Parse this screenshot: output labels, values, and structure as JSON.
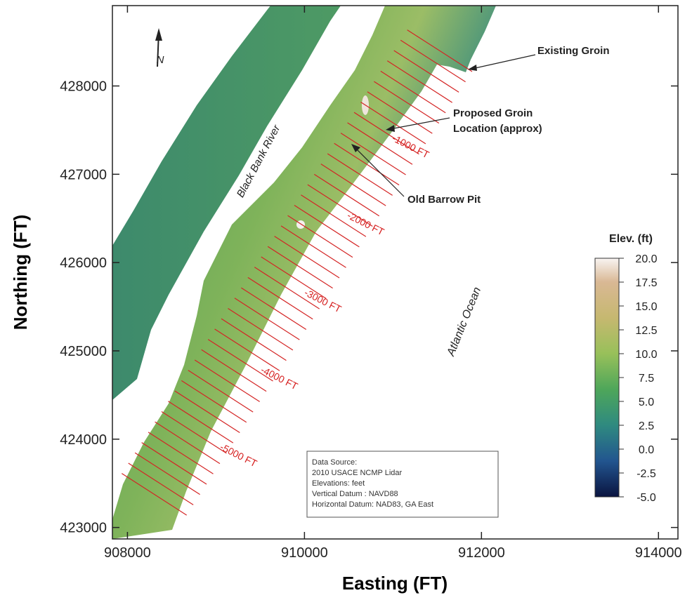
{
  "chart_data": {
    "type": "map",
    "x_label": "Easting (FT)",
    "y_label": "Northing (FT)",
    "xlim": [
      907830,
      914220
    ],
    "ylim": [
      422870,
      428910
    ],
    "xticks": [
      908000,
      910000,
      912000,
      914000
    ],
    "yticks": [
      423000,
      424000,
      425000,
      426000,
      427000,
      428000
    ],
    "colorbar": {
      "title": "Elev. (ft)",
      "lim": [
        -5,
        20
      ],
      "ticks": [
        {
          "value": 20,
          "label": "20.0"
        },
        {
          "value": 17.5,
          "label": "17.5"
        },
        {
          "value": 15,
          "label": "15.0"
        },
        {
          "value": 12.5,
          "label": "12.5"
        },
        {
          "value": 10,
          "label": "10.0"
        },
        {
          "value": 7.5,
          "label": "7.5"
        },
        {
          "value": 5,
          "label": "5.0"
        },
        {
          "value": 2.5,
          "label": "2.5"
        },
        {
          "value": 0,
          "label": "0.0"
        },
        {
          "value": -2.5,
          "label": "-2.5"
        },
        {
          "value": -5,
          "label": "-5.0"
        }
      ]
    },
    "annotations": {
      "existing_groin": "Existing Groin",
      "proposed_groin": [
        "Proposed Groin",
        "Location (approx)"
      ],
      "barrow_pit": "Old Barrow Pit",
      "river": "Black Bank River",
      "ocean": "Atlantic Ocean",
      "north": "N",
      "distances": [
        "-1000 FT",
        "-2000 FT",
        "-3000 FT",
        "-4000 FT",
        "-5000 FT"
      ]
    },
    "data_source": [
      "Data Source:",
      "2010 USACE NCMP Lidar",
      "Elevations: feet",
      "Vertical Datum : NAVD88",
      "Horizontal Datum: NAD83, GA East"
    ]
  }
}
